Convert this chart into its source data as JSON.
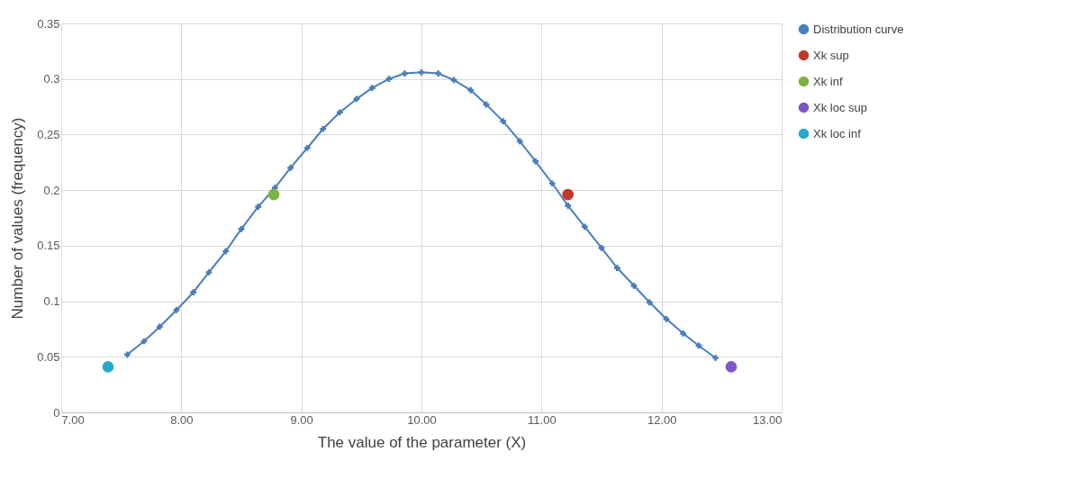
{
  "chart_data": {
    "type": "line",
    "xlabel": "The value of the parameter (X)",
    "ylabel": "Number of values (frequency)",
    "xlim": [
      7,
      13
    ],
    "ylim": [
      0,
      0.35
    ],
    "xticks": [
      {
        "value": 7,
        "label": "7.00"
      },
      {
        "value": 8,
        "label": "8.00"
      },
      {
        "value": 9,
        "label": "9.00"
      },
      {
        "value": 10,
        "label": "10.00"
      },
      {
        "value": 11,
        "label": "11.00"
      },
      {
        "value": 12,
        "label": "12.00"
      },
      {
        "value": 13,
        "label": "13.00"
      }
    ],
    "yticks": [
      0,
      0.05,
      0.1,
      0.15,
      0.2,
      0.25,
      0.3,
      0.35
    ],
    "grid": true,
    "legend": "right",
    "line_style": "solid",
    "series": [
      {
        "name": "Distribution curve",
        "marker": "cross",
        "color": "#4a7ebb",
        "x": [
          7.55,
          7.69,
          7.82,
          7.96,
          8.1,
          8.23,
          8.37,
          8.5,
          8.64,
          8.78,
          8.91,
          9.05,
          9.18,
          9.32,
          9.46,
          9.59,
          9.73,
          9.86,
          10.0,
          10.14,
          10.27,
          10.41,
          10.54,
          10.68,
          10.82,
          10.95,
          11.09,
          11.22,
          11.36,
          11.5,
          11.63,
          11.77,
          11.9,
          12.04,
          12.18,
          12.31,
          12.45
        ],
        "values": [
          0.052,
          0.064,
          0.077,
          0.092,
          0.108,
          0.126,
          0.145,
          0.165,
          0.185,
          0.202,
          0.22,
          0.238,
          0.255,
          0.27,
          0.282,
          0.292,
          0.3,
          0.305,
          0.306,
          0.305,
          0.299,
          0.29,
          0.277,
          0.262,
          0.244,
          0.226,
          0.206,
          0.186,
          0.167,
          0.148,
          0.13,
          0.114,
          0.099,
          0.084,
          0.071,
          0.06,
          0.049
        ]
      },
      {
        "name": "Xk sup",
        "type": "scatter",
        "marker": "circle",
        "color": "#c0392b",
        "x": [
          11.22
        ],
        "values": [
          0.196
        ]
      },
      {
        "name": "Xk inf",
        "type": "scatter",
        "marker": "circle",
        "color": "#7cb342",
        "x": [
          8.77
        ],
        "values": [
          0.196
        ]
      },
      {
        "name": "Xk loc sup",
        "type": "scatter",
        "marker": "circle",
        "color": "#7e57c2",
        "x": [
          12.58
        ],
        "values": [
          0.041
        ]
      },
      {
        "name": "Xk loc inf",
        "type": "scatter",
        "marker": "circle",
        "color": "#26a9c9",
        "x": [
          7.39
        ],
        "values": [
          0.041
        ]
      }
    ]
  }
}
